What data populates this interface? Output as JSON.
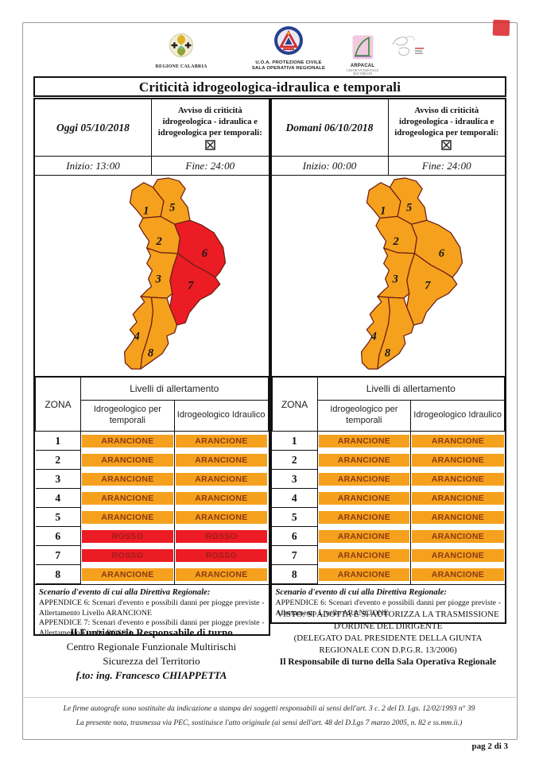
{
  "header": {
    "logos": {
      "calabria_caption": "REGIONE CALABRIA",
      "pc_caption_line1": "U.O.A. PROTEZIONE CIVILE",
      "pc_caption_line2": "SALA OPERATIVA REGIONALE",
      "arpacal_caption": "ARPACAL",
      "arpacal_subcaption": "CENTRO FUNZIONALE MULTIRISCHI"
    },
    "title": "Criticità idrogeologica-idraulica e temporali"
  },
  "panels": [
    {
      "id": "oggi",
      "date_label": "Oggi 05/10/2018",
      "avviso_text": "Avviso di criticità idrogeologica - idraulica e idrogeologica per temporali:",
      "avviso_checkbox_icon": "ballot-box-with-x",
      "inizio": "Inizio: 13:00",
      "fine": "Fine: 24:00",
      "table": {
        "zona_header": "ZONA",
        "group_header": "Livelli di allertamento",
        "col1": "Idrogeologico per temporali",
        "col2": "Idrogeologico Idraulico",
        "rows": [
          {
            "zona": "1",
            "temporali": "ARANCIONE",
            "idraulico": "ARANCIONE",
            "level": "arancione"
          },
          {
            "zona": "2",
            "temporali": "ARANCIONE",
            "idraulico": "ARANCIONE",
            "level": "arancione"
          },
          {
            "zona": "3",
            "temporali": "ARANCIONE",
            "idraulico": "ARANCIONE",
            "level": "arancione"
          },
          {
            "zona": "4",
            "temporali": "ARANCIONE",
            "idraulico": "ARANCIONE",
            "level": "arancione"
          },
          {
            "zona": "5",
            "temporali": "ARANCIONE",
            "idraulico": "ARANCIONE",
            "level": "arancione"
          },
          {
            "zona": "6",
            "temporali": "ROSSO",
            "idraulico": "ROSSO",
            "level": "rosso"
          },
          {
            "zona": "7",
            "temporali": "ROSSO",
            "idraulico": "ROSSO",
            "level": "rosso"
          },
          {
            "zona": "8",
            "temporali": "ARANCIONE",
            "idraulico": "ARANCIONE",
            "level": "arancione"
          }
        ]
      },
      "map_levels": {
        "1": "arancione",
        "2": "arancione",
        "3": "arancione",
        "4": "arancione",
        "5": "arancione",
        "6": "rosso",
        "7": "rosso",
        "8": "arancione"
      },
      "scenario": {
        "heading": "Scenario d'evento di cui alla Direttiva Regionale:",
        "lines": [
          "APPENDICE 6: Scenari d'evento e possibili danni per piogge previste - Allertamento Livello ARANCIONE",
          "APPENDICE 7: Scenari d'evento e possibili danni per piogge previste - Allertamento Livello ROSSO"
        ]
      }
    },
    {
      "id": "domani",
      "date_label": "Domani 06/10/2018",
      "avviso_text": "Avviso di criticità idrogeologica - idraulica e idrogeologica per temporali:",
      "avviso_checkbox_icon": "ballot-box-with-x",
      "inizio": "Inizio: 00:00",
      "fine": "Fine: 24:00",
      "table": {
        "zona_header": "ZONA",
        "group_header": "Livelli di allertamento",
        "col1": "Idrogeologico per temporali",
        "col2": "Idrogeologico Idraulico",
        "rows": [
          {
            "zona": "1",
            "temporali": "ARANCIONE",
            "idraulico": "ARANCIONE",
            "level": "arancione"
          },
          {
            "zona": "2",
            "temporali": "ARANCIONE",
            "idraulico": "ARANCIONE",
            "level": "arancione"
          },
          {
            "zona": "3",
            "temporali": "ARANCIONE",
            "idraulico": "ARANCIONE",
            "level": "arancione"
          },
          {
            "zona": "4",
            "temporali": "ARANCIONE",
            "idraulico": "ARANCIONE",
            "level": "arancione"
          },
          {
            "zona": "5",
            "temporali": "ARANCIONE",
            "idraulico": "ARANCIONE",
            "level": "arancione"
          },
          {
            "zona": "6",
            "temporali": "ARANCIONE",
            "idraulico": "ARANCIONE",
            "level": "arancione"
          },
          {
            "zona": "7",
            "temporali": "ARANCIONE",
            "idraulico": "ARANCIONE",
            "level": "arancione"
          },
          {
            "zona": "8",
            "temporali": "ARANCIONE",
            "idraulico": "ARANCIONE",
            "level": "arancione"
          }
        ]
      },
      "map_levels": {
        "1": "arancione",
        "2": "arancione",
        "3": "arancione",
        "4": "arancione",
        "5": "arancione",
        "6": "arancione",
        "7": "arancione",
        "8": "arancione"
      },
      "scenario": {
        "heading": "Scenario d'evento di cui alla Direttiva Regionale:",
        "lines": [
          "APPENDICE 6: Scenari d'evento e possibili danni per piogge previste - Allertamento Livello ARANCIONE"
        ]
      }
    }
  ],
  "signatures": {
    "left": {
      "line1": "Il Funzionario Responsabile di turno",
      "line2": "Centro Regionale Funzionale Multirischi",
      "line3": "Sicurezza del Territorio",
      "line4": "f.to: ing. Francesco CHIAPPETTA"
    },
    "right": {
      "line1": "VISTO: SI ADOTTA E SI AUTORIZZA LA TRASMISSIONE",
      "line2": "D'ORDINE DEL DIRIGENTE",
      "line3": "(DELEGATO DAL PRESIDENTE DELLA GIUNTA",
      "line4": "REGIONALE CON D.P.G.R. 13/2006)",
      "line5": "Il Responsabile di turno della Sala Operativa Regionale"
    }
  },
  "footer": {
    "note1": "Le firme autografe sono sostituite da indicazione a stampa dei soggetti responsabili ai sensi dell'art. 3 c. 2 del D. Lgs. 12/02/1993 n° 39",
    "note2": "La presente nota, trasmessa via PEC, sostituisce l'atto originale (ai sensi dell'art. 48 del D.Lgs 7 marzo 2005, n. 82 e ss.mm.ii.)",
    "page": "pag 2 di 3"
  },
  "colors": {
    "arancione": "#F5A11E",
    "rosso": "#EC1C24",
    "text_arancione": "#8C3A12",
    "text_rosso": "#A31B1B",
    "map_border": "#6E1F14"
  }
}
